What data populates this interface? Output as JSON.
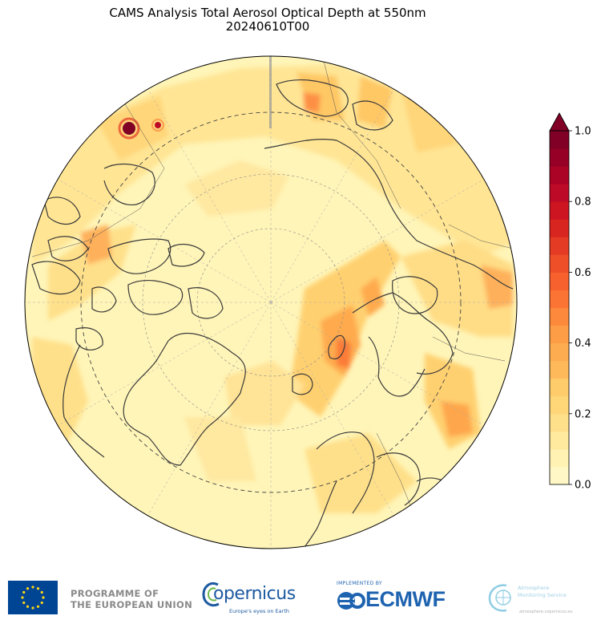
{
  "title": "CAMS Analysis Total Aerosol Optical Depth at 550nm",
  "subtitle": "20240610T00",
  "colorbar": {
    "levels": [
      0.0,
      0.05,
      0.1,
      0.15,
      0.2,
      0.25,
      0.3,
      0.35,
      0.4,
      0.45,
      0.5,
      0.55,
      0.6,
      0.65,
      0.7,
      0.75,
      0.8,
      0.85,
      0.9,
      0.95,
      1.0
    ],
    "tick_labels": [
      "0.0",
      "0.2",
      "0.4",
      "0.6",
      "0.8",
      "1.0"
    ],
    "colors": [
      "#fff8c6",
      "#fff2b2",
      "#ffea9e",
      "#ffe08a",
      "#ffd678",
      "#ffcc6c",
      "#feb95a",
      "#feac50",
      "#fd9d45",
      "#fd8a3c",
      "#fc7434",
      "#f6612d",
      "#ee4f29",
      "#e43b24",
      "#d9251f",
      "#cc1521",
      "#bd0a26",
      "#ab0326",
      "#960026",
      "#800026"
    ],
    "extend_color": "#800026"
  },
  "map": {
    "projection": "north-polar-stereographic",
    "background_color": "#fff5b8",
    "gridlines": "dashed"
  },
  "footer": {
    "programme": [
      "PROGRAMME OF",
      "THE EUROPEAN UNION"
    ],
    "copernicus": "opernicus",
    "copernicus_tagline": "Europe's eyes on Earth",
    "implemented_by": "IMPLEMENTED BY",
    "ecmwf": "ECMWF",
    "ams": [
      "Atmosphere",
      "Monitoring Service"
    ],
    "ams_url": "atmosphere.copernicus.eu"
  }
}
